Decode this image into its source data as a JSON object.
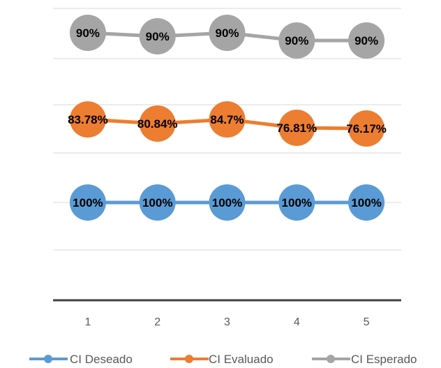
{
  "chart_data": {
    "type": "line",
    "categories": [
      "1",
      "2",
      "3",
      "4",
      "5"
    ],
    "series": [
      {
        "name": "CI Deseado",
        "color": "#5B9BD5",
        "values": [
          1.0,
          1.0,
          1.0,
          1.0,
          1.0
        ],
        "labels": [
          "100%",
          "100%",
          "100%",
          "100%",
          "100%"
        ]
      },
      {
        "name": "CI Evaluado",
        "color": "#ED7D31",
        "values": [
          0.8378,
          0.8084,
          0.847,
          0.7681,
          0.7617
        ],
        "labels": [
          "83.78%",
          "80.84%",
          "84.7%",
          "76.81%",
          "76.17%"
        ]
      },
      {
        "name": "CI Esperado",
        "color": "#A5A5A5",
        "values": [
          0.9,
          0.9,
          0.9,
          0.9,
          0.9
        ],
        "labels": [
          "90%",
          "90%",
          "90%",
          "90%",
          "90%"
        ]
      }
    ],
    "grid": true,
    "legend_position": "bottom",
    "y_axis_labels_visible": false
  }
}
